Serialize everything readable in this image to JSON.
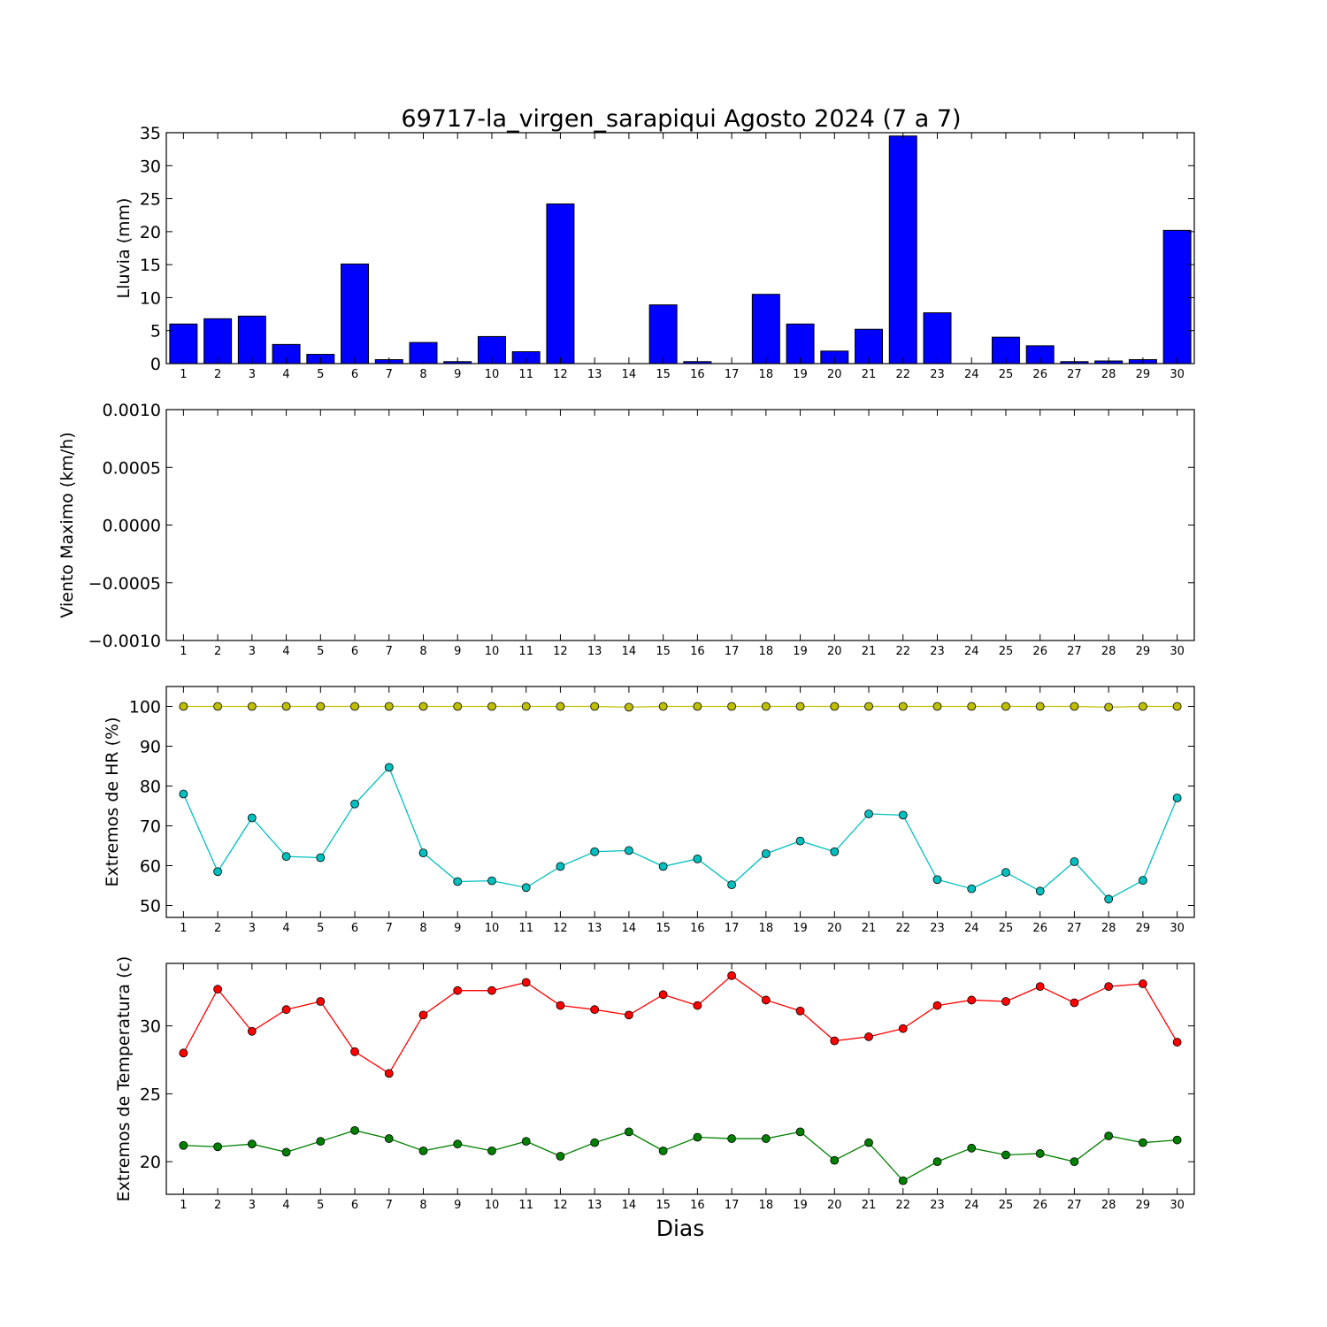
{
  "title": "69717-la_virgen_sarapiqui Agosto 2024  (7 a 7)",
  "xlabel": "Dias",
  "chart_data": [
    {
      "type": "bar",
      "ylabel": "Lluvia (mm)",
      "x": [
        1,
        2,
        3,
        4,
        5,
        6,
        7,
        8,
        9,
        10,
        11,
        12,
        13,
        14,
        15,
        16,
        17,
        18,
        19,
        20,
        21,
        22,
        23,
        24,
        25,
        26,
        27,
        28,
        29,
        30
      ],
      "values": [
        6.0,
        6.8,
        7.2,
        2.9,
        1.4,
        15.1,
        0.6,
        3.2,
        0.3,
        4.1,
        1.8,
        24.2,
        0,
        0,
        8.9,
        0.3,
        0,
        10.5,
        6.0,
        1.9,
        5.2,
        34.5,
        7.7,
        0,
        4.0,
        2.7,
        0.3,
        0.4,
        0.6,
        20.2
      ],
      "ylim": [
        0,
        35
      ],
      "yticks": [
        "0",
        "5",
        "10",
        "15",
        "20",
        "25",
        "30",
        "35"
      ],
      "xlim": [
        0.5,
        30.5
      ],
      "color": "#0000ff"
    },
    {
      "type": "line",
      "ylabel": "Viento Maximo (km/h)",
      "x": [
        1,
        2,
        3,
        4,
        5,
        6,
        7,
        8,
        9,
        10,
        11,
        12,
        13,
        14,
        15,
        16,
        17,
        18,
        19,
        20,
        21,
        22,
        23,
        24,
        25,
        26,
        27,
        28,
        29,
        30
      ],
      "series": [],
      "ylim": [
        -0.001,
        0.001
      ],
      "yticks": [
        "−0.0010",
        "−0.0005",
        "0.0000",
        "0.0005",
        "0.0010"
      ],
      "xlim": [
        0.5,
        30.5
      ]
    },
    {
      "type": "line",
      "ylabel": "Extremos de HR (%)",
      "x": [
        1,
        2,
        3,
        4,
        5,
        6,
        7,
        8,
        9,
        10,
        11,
        12,
        13,
        14,
        15,
        16,
        17,
        18,
        19,
        20,
        21,
        22,
        23,
        24,
        25,
        26,
        27,
        28,
        29,
        30
      ],
      "series": [
        {
          "color": "#bfbf00",
          "values": [
            100,
            100,
            100,
            100,
            100,
            100,
            100,
            100,
            100,
            100,
            100,
            100,
            100,
            99.8,
            100,
            100,
            100,
            100,
            100,
            100,
            100,
            100,
            100,
            100,
            100,
            100,
            100,
            99.8,
            100,
            100
          ]
        },
        {
          "color": "#00bfbf",
          "values": [
            78,
            58.5,
            72,
            62.3,
            62,
            75.5,
            84.7,
            63.2,
            56,
            56.2,
            54.5,
            59.8,
            63.5,
            63.8,
            59.8,
            61.7,
            55.2,
            63,
            66.2,
            63.5,
            73,
            72.7,
            56.5,
            54.2,
            58.3,
            53.6,
            61,
            51.6,
            56.3,
            77
          ]
        }
      ],
      "ylim": [
        47,
        105
      ],
      "yticks": [
        "50",
        "60",
        "70",
        "80",
        "90",
        "100"
      ],
      "xlim": [
        0.5,
        30.5
      ]
    },
    {
      "type": "line",
      "ylabel": "Extremos de Temperatura (c)",
      "x": [
        1,
        2,
        3,
        4,
        5,
        6,
        7,
        8,
        9,
        10,
        11,
        12,
        13,
        14,
        15,
        16,
        17,
        18,
        19,
        20,
        21,
        22,
        23,
        24,
        25,
        26,
        27,
        28,
        29,
        30
      ],
      "series": [
        {
          "color": "#ff0000",
          "values": [
            28,
            32.7,
            29.6,
            31.2,
            31.8,
            28.1,
            26.5,
            30.8,
            32.6,
            32.6,
            33.2,
            31.5,
            31.2,
            30.8,
            32.3,
            31.5,
            33.7,
            31.9,
            31.1,
            28.9,
            29.2,
            29.8,
            31.5,
            31.9,
            31.8,
            32.9,
            31.7,
            32.9,
            33.1,
            28.8
          ]
        },
        {
          "color": "#008000",
          "values": [
            21.2,
            21.1,
            21.3,
            20.7,
            21.5,
            22.3,
            21.7,
            20.8,
            21.3,
            20.8,
            21.5,
            20.4,
            21.4,
            22.2,
            20.8,
            21.8,
            21.7,
            21.7,
            22.2,
            20.1,
            21.4,
            18.6,
            20,
            21,
            20.5,
            20.6,
            20,
            21.9,
            21.4,
            21.6
          ]
        }
      ],
      "ylim": [
        17.6,
        34.6
      ],
      "yticks": [
        "20",
        "25",
        "30"
      ],
      "xlim": [
        0.5,
        30.5
      ]
    }
  ]
}
